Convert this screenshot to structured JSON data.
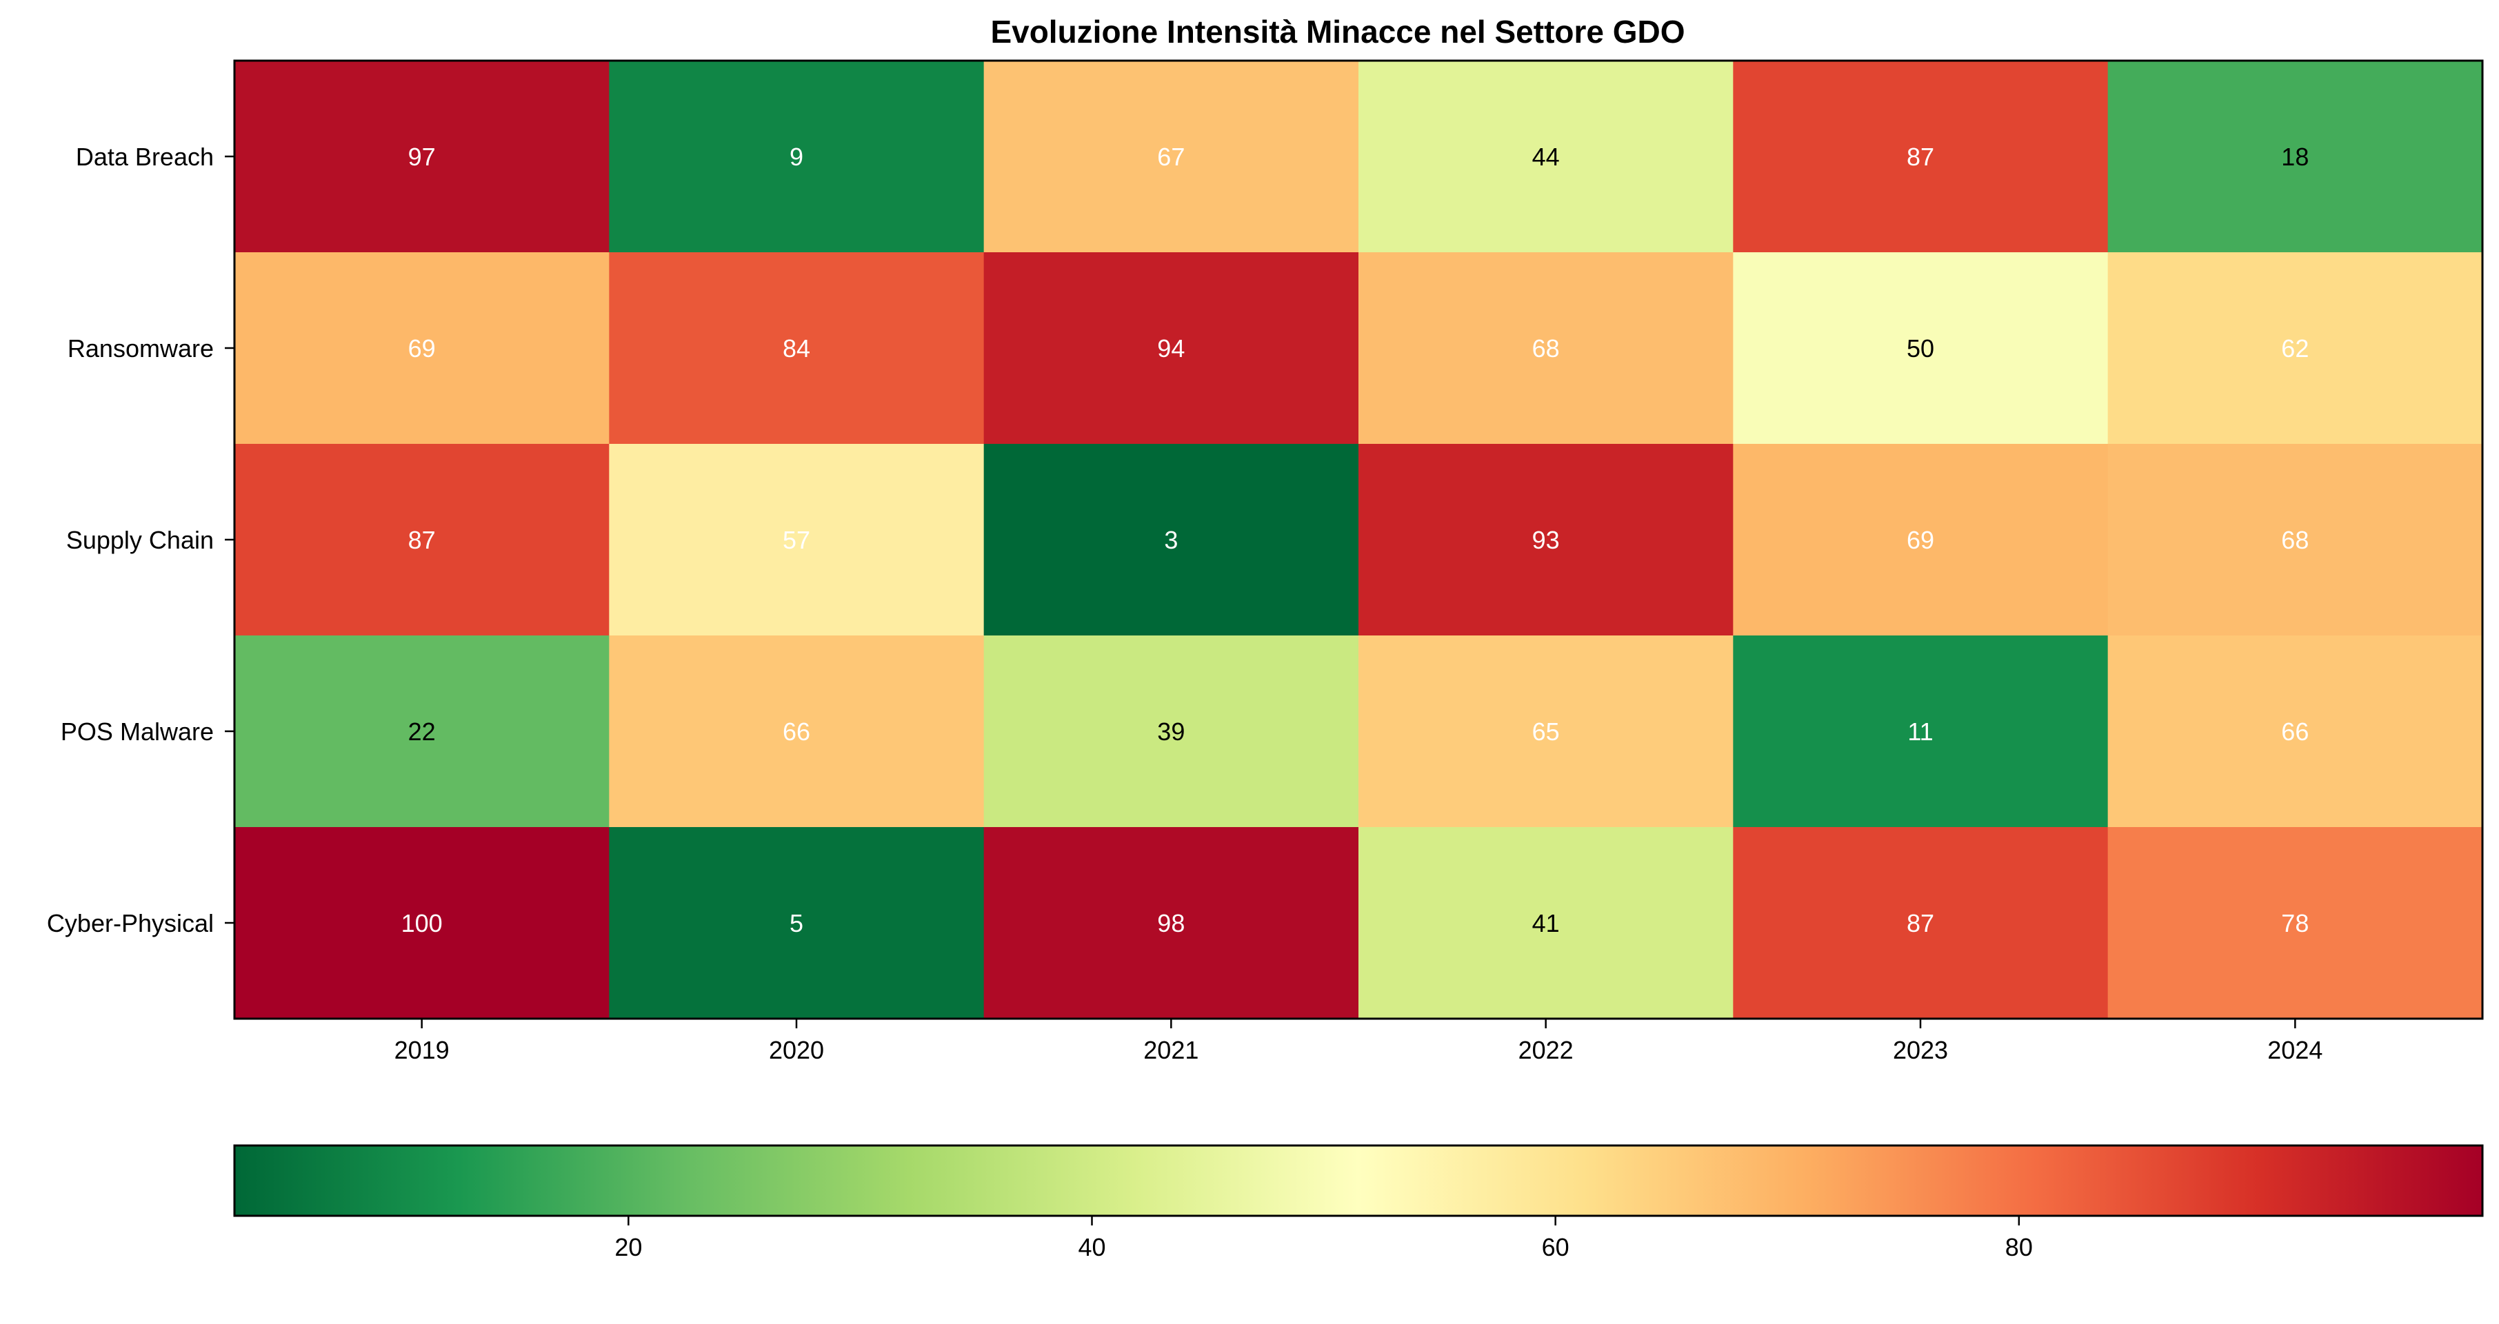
{
  "chart_data": {
    "type": "heatmap",
    "title": "Evoluzione Intensità Minacce nel Settore GDO",
    "x_categories": [
      "2019",
      "2020",
      "2021",
      "2022",
      "2023",
      "2024"
    ],
    "y_categories": [
      "Data Breach",
      "Ransomware",
      "Supply Chain",
      "POS Malware",
      "Cyber-Physical"
    ],
    "values": [
      [
        97,
        9,
        67,
        44,
        87,
        18
      ],
      [
        69,
        84,
        94,
        68,
        50,
        62
      ],
      [
        87,
        57,
        3,
        93,
        69,
        68
      ],
      [
        22,
        66,
        39,
        65,
        11,
        66
      ],
      [
        100,
        5,
        98,
        41,
        87,
        78
      ]
    ],
    "value_range": [
      3,
      100
    ],
    "colormap": "RdYlGn_r",
    "colorbar": {
      "orientation": "horizontal",
      "position": "bottom",
      "ticks": [
        20,
        40,
        60,
        80
      ]
    },
    "grid": false,
    "legend": "none"
  }
}
